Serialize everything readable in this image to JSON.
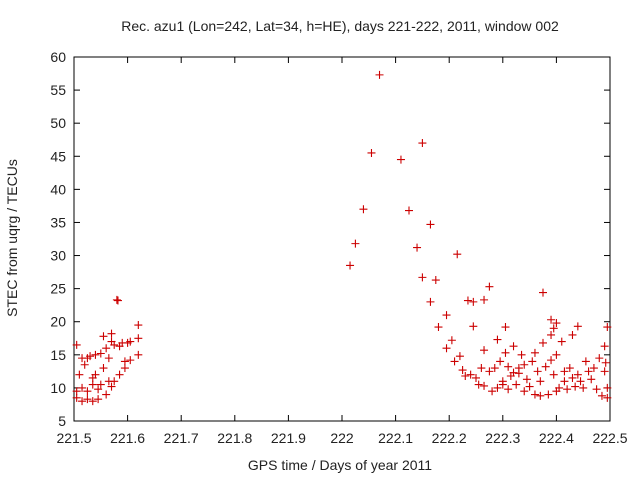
{
  "chart_data": {
    "type": "scatter",
    "title": "Rec. azu1 (Lon=242, Lat=34, h=HE), days 221-222, 2011, window 002",
    "xlabel": "GPS time / Days of year 2011",
    "ylabel": "STEC from uqrg / TECUs",
    "xlim": [
      221.5,
      222.5
    ],
    "ylim": [
      5,
      60
    ],
    "x_ticks": [
      221.5,
      221.6,
      221.7,
      221.8,
      221.9,
      222.0,
      222.1,
      222.2,
      222.3,
      222.4,
      222.5
    ],
    "x_tick_labels": [
      "221.5",
      "221.6",
      "221.7",
      "221.8",
      "221.9",
      "222",
      "222.1",
      "222.2",
      "222.3",
      "222.4",
      "222.5"
    ],
    "y_ticks": [
      5,
      10,
      15,
      20,
      25,
      30,
      35,
      40,
      45,
      50,
      55,
      60
    ],
    "y_tick_labels": [
      "5",
      "10",
      "15",
      "20",
      "25",
      "30",
      "35",
      "40",
      "45",
      "50",
      "55",
      "60"
    ],
    "grid": false,
    "marker": "plus",
    "color": "#cc0000",
    "points": [
      [
        221.505,
        16.5
      ],
      [
        221.505,
        9.5
      ],
      [
        221.505,
        8.5
      ],
      [
        221.51,
        12.0
      ],
      [
        221.515,
        14.5
      ],
      [
        221.515,
        10.0
      ],
      [
        221.515,
        8.0
      ],
      [
        221.52,
        13.5
      ],
      [
        221.525,
        14.5
      ],
      [
        221.525,
        9.5
      ],
      [
        221.525,
        8.3
      ],
      [
        221.53,
        14.8
      ],
      [
        221.535,
        11.5
      ],
      [
        221.535,
        10.5
      ],
      [
        221.535,
        8.0
      ],
      [
        221.54,
        15.0
      ],
      [
        221.54,
        12.0
      ],
      [
        221.545,
        9.8
      ],
      [
        221.545,
        8.3
      ],
      [
        221.55,
        15.2
      ],
      [
        221.55,
        10.5
      ],
      [
        221.555,
        13.0
      ],
      [
        221.555,
        17.8
      ],
      [
        221.56,
        16.0
      ],
      [
        221.56,
        9.0
      ],
      [
        221.565,
        11.0
      ],
      [
        221.565,
        14.5
      ],
      [
        221.57,
        18.2
      ],
      [
        221.57,
        17.0
      ],
      [
        221.57,
        10.2
      ],
      [
        221.575,
        16.5
      ],
      [
        221.575,
        11.0
      ],
      [
        221.58,
        23.3
      ],
      [
        221.582,
        23.2
      ],
      [
        221.585,
        16.3
      ],
      [
        221.585,
        12.0
      ],
      [
        221.59,
        16.8
      ],
      [
        221.595,
        14.0
      ],
      [
        221.595,
        13.0
      ],
      [
        221.6,
        16.8
      ],
      [
        221.605,
        14.2
      ],
      [
        221.605,
        17.0
      ],
      [
        221.62,
        19.5
      ],
      [
        221.62,
        17.5
      ],
      [
        221.62,
        15.0
      ],
      [
        222.015,
        28.5
      ],
      [
        222.025,
        31.8
      ],
      [
        222.04,
        37.0
      ],
      [
        222.055,
        45.5
      ],
      [
        222.07,
        57.3
      ],
      [
        222.11,
        44.5
      ],
      [
        222.125,
        36.8
      ],
      [
        222.14,
        31.2
      ],
      [
        222.15,
        47.0
      ],
      [
        222.15,
        26.7
      ],
      [
        222.165,
        34.7
      ],
      [
        222.165,
        23.0
      ],
      [
        222.175,
        26.3
      ],
      [
        222.18,
        19.2
      ],
      [
        222.195,
        21.0
      ],
      [
        222.195,
        16.0
      ],
      [
        222.205,
        17.2
      ],
      [
        222.21,
        14.0
      ],
      [
        222.215,
        30.2
      ],
      [
        222.22,
        14.8
      ],
      [
        222.225,
        12.7
      ],
      [
        222.23,
        11.8
      ],
      [
        222.235,
        23.2
      ],
      [
        222.24,
        12.0
      ],
      [
        222.245,
        23.0
      ],
      [
        222.245,
        19.3
      ],
      [
        222.25,
        11.5
      ],
      [
        222.255,
        10.5
      ],
      [
        222.26,
        13.0
      ],
      [
        222.265,
        23.3
      ],
      [
        222.265,
        10.3
      ],
      [
        222.265,
        15.7
      ],
      [
        222.275,
        25.3
      ],
      [
        222.275,
        12.5
      ],
      [
        222.28,
        9.5
      ],
      [
        222.285,
        13.0
      ],
      [
        222.29,
        10.0
      ],
      [
        222.29,
        17.3
      ],
      [
        222.295,
        14.0
      ],
      [
        222.3,
        10.5
      ],
      [
        222.3,
        11.0
      ],
      [
        222.305,
        19.2
      ],
      [
        222.305,
        15.3
      ],
      [
        222.31,
        13.2
      ],
      [
        222.31,
        9.8
      ],
      [
        222.315,
        11.8
      ],
      [
        222.32,
        12.3
      ],
      [
        222.32,
        16.3
      ],
      [
        222.325,
        10.5
      ],
      [
        222.33,
        13.0
      ],
      [
        222.33,
        12.2
      ],
      [
        222.335,
        15.0
      ],
      [
        222.34,
        9.5
      ],
      [
        222.34,
        13.5
      ],
      [
        222.345,
        11.3
      ],
      [
        222.35,
        10.2
      ],
      [
        222.355,
        14.0
      ],
      [
        222.36,
        15.3
      ],
      [
        222.36,
        9.0
      ],
      [
        222.365,
        12.5
      ],
      [
        222.37,
        11.0
      ],
      [
        222.37,
        8.8
      ],
      [
        222.375,
        24.4
      ],
      [
        222.375,
        16.8
      ],
      [
        222.38,
        13.2
      ],
      [
        222.385,
        9.0
      ],
      [
        222.39,
        20.3
      ],
      [
        222.39,
        18.0
      ],
      [
        222.39,
        14.2
      ],
      [
        222.395,
        19.0
      ],
      [
        222.395,
        12.0
      ],
      [
        222.4,
        19.8
      ],
      [
        222.4,
        15.0
      ],
      [
        222.4,
        9.5
      ],
      [
        222.405,
        10.0
      ],
      [
        222.41,
        17.0
      ],
      [
        222.415,
        12.5
      ],
      [
        222.415,
        11.0
      ],
      [
        222.42,
        9.8
      ],
      [
        222.425,
        13.0
      ],
      [
        222.43,
        18.0
      ],
      [
        222.43,
        11.5
      ],
      [
        222.435,
        10.2
      ],
      [
        222.44,
        19.3
      ],
      [
        222.44,
        12.0
      ],
      [
        222.445,
        11.0
      ],
      [
        222.45,
        10.0
      ],
      [
        222.455,
        14.0
      ],
      [
        222.46,
        12.5
      ],
      [
        222.465,
        11.3
      ],
      [
        222.47,
        13.0
      ],
      [
        222.475,
        9.8
      ],
      [
        222.48,
        14.5
      ],
      [
        222.485,
        8.8
      ],
      [
        222.49,
        12.5
      ],
      [
        222.49,
        16.3
      ],
      [
        222.495,
        19.2
      ],
      [
        222.495,
        10.0
      ],
      [
        222.495,
        8.5
      ],
      [
        222.492,
        13.8
      ]
    ]
  }
}
